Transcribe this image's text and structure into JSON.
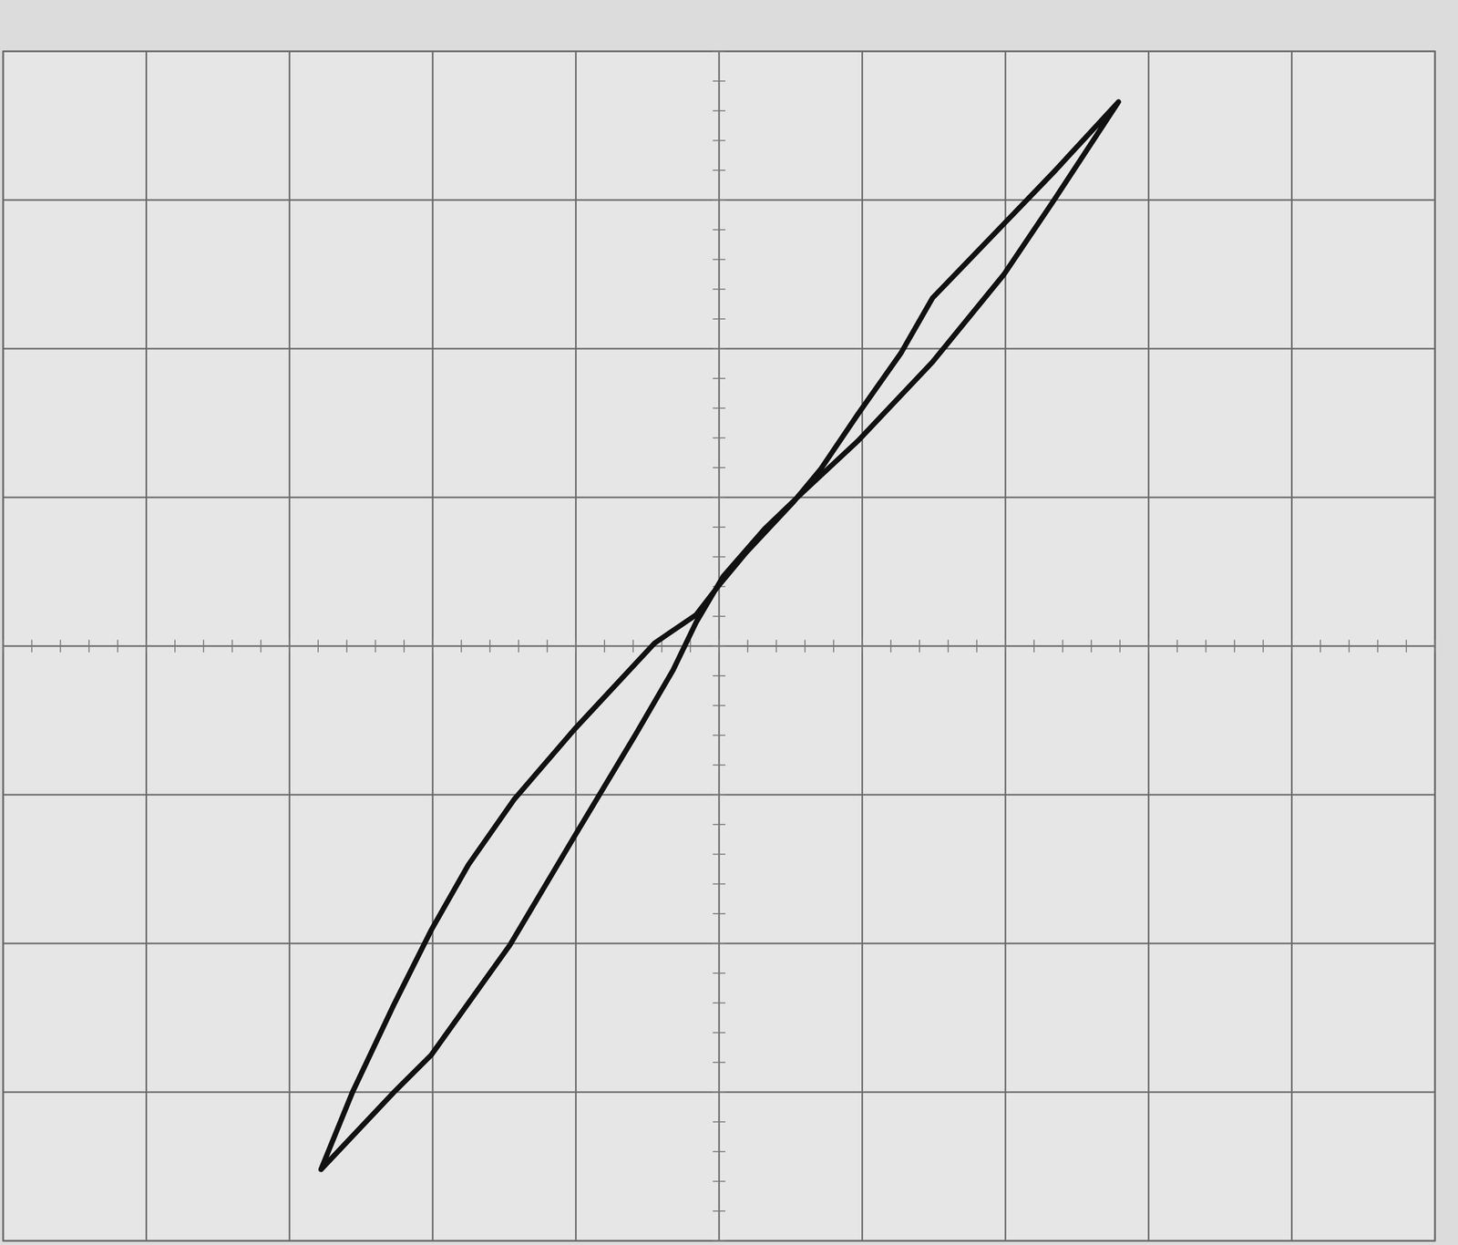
{
  "chart_data": {
    "type": "line",
    "x": [
      2.79,
      2.34,
      1.99,
      1.49,
      1.27,
      0.97,
      0.71,
      0.52,
      0.19,
      0.0,
      -0.16,
      -0.45,
      -1.01,
      -1.43,
      -1.75,
      -2.01,
      -2.27,
      -2.56,
      -2.78,
      -2.27,
      -2.01,
      -1.46,
      -1.01,
      -0.58,
      -0.32,
      -0.16,
      0.03,
      0.32,
      0.58,
      0.97,
      1.49,
      1.99,
      2.34,
      2.79
    ],
    "series": [
      {
        "color": "#111111",
        "values": [
          3.66,
          3.19,
          2.84,
          2.34,
          1.97,
          1.56,
          1.19,
          0.97,
          0.63,
          0.41,
          0.21,
          0.02,
          -0.56,
          -1.03,
          -1.47,
          -1.91,
          -2.41,
          -3.0,
          -3.52,
          -3.0,
          -2.75,
          -2.01,
          -1.28,
          -0.59,
          -0.16,
          0.16,
          0.47,
          0.79,
          1.03,
          1.38,
          1.91,
          2.5,
          3.0,
          3.66
        ]
      }
    ],
    "xlim": [
      -5,
      5
    ],
    "ylim": [
      -4,
      4
    ],
    "xticks": [
      -5,
      -4,
      -3,
      -2,
      -1,
      0,
      1,
      2,
      3,
      4,
      5
    ],
    "yticks": [
      -4,
      -3,
      -2,
      -1,
      0,
      1,
      2,
      3,
      4
    ],
    "grid": true,
    "tick_labels": false
  }
}
